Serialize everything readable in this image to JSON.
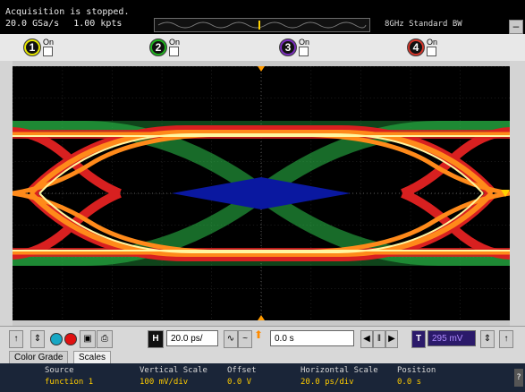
{
  "status": {
    "message": "Acquisition is stopped.",
    "sample_rate": "20.0 GSa/s",
    "points": "1.00 kpts",
    "bandwidth": "8GHz Standard BW"
  },
  "channels": [
    {
      "number": "1",
      "label": "On",
      "color": "#e8e800",
      "checked": false
    },
    {
      "number": "2",
      "label": "On",
      "color": "#1eb51e",
      "checked": false
    },
    {
      "number": "3",
      "label": "On",
      "color": "#7b2cc0",
      "checked": false
    },
    {
      "number": "4",
      "label": "On",
      "color": "#d9362b",
      "checked": false
    }
  ],
  "toolbar": {
    "h_label": "H",
    "timebase_value": "20.0 ps/",
    "position_value": "0.0 s",
    "t_label": "T",
    "trigger_level": "295 mV"
  },
  "tabs": {
    "color_grade": "Color Grade",
    "scales": "Scales"
  },
  "scales": {
    "source_header": "Source",
    "source_value": "function 1",
    "vscale_header": "Vertical Scale",
    "vscale_value": "100 mV/div",
    "offset_header": "Offset",
    "offset_value": "0.0 V",
    "hscale_header": "Horizontal Scale",
    "hscale_value": "20.0 ps/div",
    "position_header": "Position",
    "position_value": "0.0 s"
  },
  "colors": {
    "mask": "#0a18a0",
    "trace_hot": "#fff6a0",
    "trace_warm": "#ff8a1a",
    "trace_mid": "#d82020",
    "trace_cool": "#2bc24a"
  }
}
